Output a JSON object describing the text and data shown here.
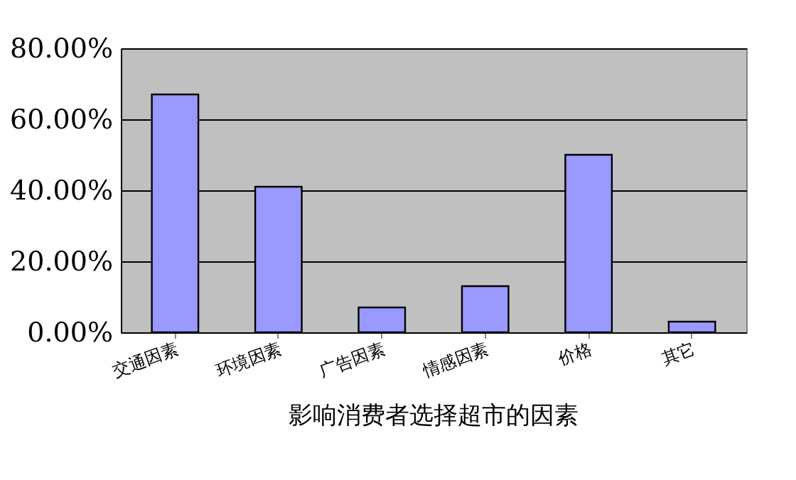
{
  "chart_data": {
    "type": "bar",
    "title": "影响消费者选择超市的因素",
    "categories": [
      "交通因素",
      "环境因素",
      "广告因素",
      "情感因素",
      "价格",
      "其它"
    ],
    "values": [
      67,
      41,
      7,
      13,
      50,
      3
    ],
    "color": "#9999ff",
    "ylim": [
      0,
      80
    ],
    "yticks": [
      {
        "value": 0,
        "label": "0.00%"
      },
      {
        "value": 20,
        "label": "20.00%"
      },
      {
        "value": 40,
        "label": "40.00%"
      },
      {
        "value": 60,
        "label": "60.00%"
      },
      {
        "value": 80,
        "label": "80.00%"
      }
    ],
    "grid": "y"
  }
}
